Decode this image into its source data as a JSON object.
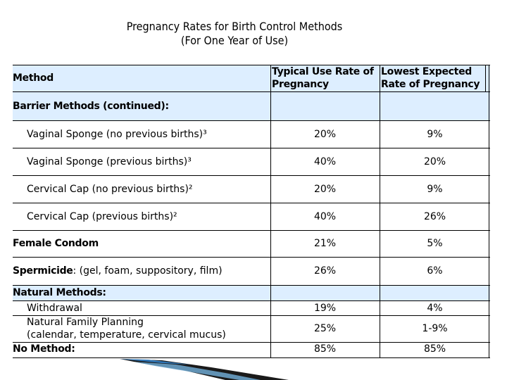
{
  "title": {
    "line1": "Pregnancy Rates for Birth Control Methods",
    "line2": "(For One Year of Use)"
  },
  "columns": {
    "method": "Method",
    "typical_line1": "Typical Use Rate of",
    "typical_line2": "Pregnancy",
    "lowest_line1": "Lowest Expected",
    "lowest_line2": "Rate of Pregnancy"
  },
  "section_barrier": "Barrier Methods (continued):",
  "rows": [
    {
      "method": "Vaginal Sponge (no previous births)³",
      "typical": "20%",
      "lowest": "9%"
    },
    {
      "method": "Vaginal Sponge (previous births)³",
      "typical": "40%",
      "lowest": "20%"
    },
    {
      "method": "Cervical Cap (no previous births)²",
      "typical": "20%",
      "lowest": "9%"
    },
    {
      "method": "Cervical Cap (previous births)²",
      "typical": "40%",
      "lowest": "26%"
    },
    {
      "method": "Female Condom",
      "typical": "21%",
      "lowest": "5%"
    },
    {
      "method_bold": "Spermicide",
      "method_rest": ": (gel, foam, suppository, film)",
      "typical": "26%",
      "lowest": "6%"
    }
  ],
  "section_natural": "Natural Methods:",
  "natural_rows": [
    {
      "method": "Withdrawal",
      "typical": "19%",
      "lowest": "4%"
    },
    {
      "method_line1": "Natural Family Planning",
      "method_line2": "(calendar, temperature, cervical mucus)",
      "typical": "25%",
      "lowest": "1-9%"
    }
  ],
  "no_method": {
    "method": "No Method:",
    "typical": "85%",
    "lowest": "85%"
  }
}
